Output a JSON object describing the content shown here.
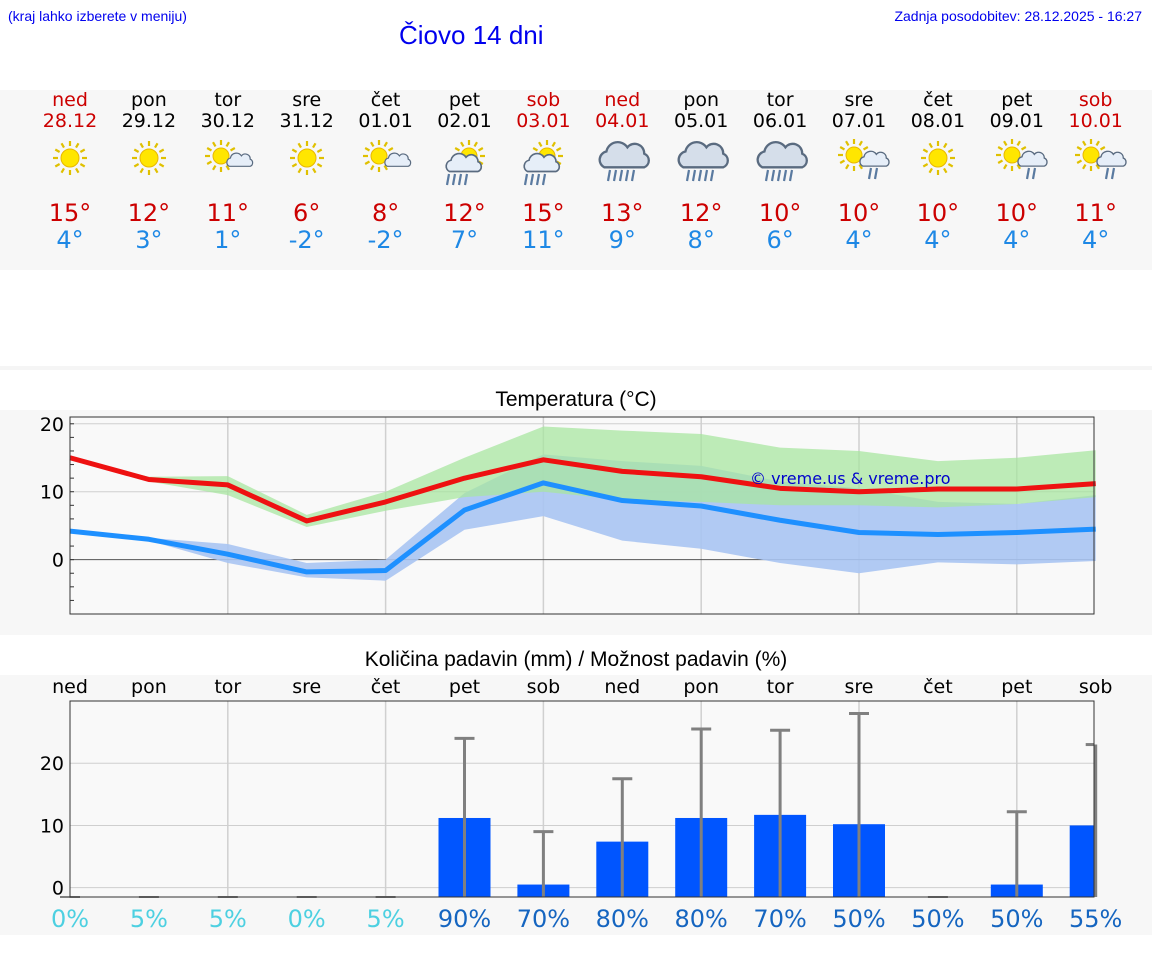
{
  "header": {
    "hint": "(kraj lahko izberete v meniju)",
    "title": "Čiovo 14 dni",
    "updated": "Zadnja posodobitev: 28.12.2025 - 16:27"
  },
  "colors": {
    "link": "#0000ee",
    "weekend": "#cc0000",
    "weekday": "#000000",
    "tmax": "#cc0000",
    "tmin": "#1e88e5",
    "max_line": "#ee1111",
    "min_line": "#1e90ff",
    "max_band": "#a8e6a0",
    "min_band": "#a9c4f2",
    "overlap_band": "#7fc4a6",
    "bar": "#0055ff",
    "whisker": "#808080",
    "pct_low": "#4dd0e1",
    "pct_high": "#1565c0"
  },
  "days": [
    {
      "name": "ned",
      "date": "28.12",
      "weekend": true,
      "icon": "sun-icon",
      "tmax": "15°",
      "tmin": "4°"
    },
    {
      "name": "pon",
      "date": "29.12",
      "weekend": false,
      "icon": "sun-icon",
      "tmax": "12°",
      "tmin": "3°"
    },
    {
      "name": "tor",
      "date": "30.12",
      "weekend": false,
      "icon": "sun-cloud-icon",
      "tmax": "11°",
      "tmin": "1°"
    },
    {
      "name": "sre",
      "date": "31.12",
      "weekend": false,
      "icon": "sun-icon",
      "tmax": "6°",
      "tmin": "-2°"
    },
    {
      "name": "čet",
      "date": "01.01",
      "weekend": false,
      "icon": "sun-cloud-icon",
      "tmax": "8°",
      "tmin": "-2°"
    },
    {
      "name": "pet",
      "date": "02.01",
      "weekend": false,
      "icon": "sun-cloud-rain-icon",
      "tmax": "12°",
      "tmin": "7°"
    },
    {
      "name": "sob",
      "date": "03.01",
      "weekend": true,
      "icon": "sun-cloud-rain-icon",
      "tmax": "15°",
      "tmin": "11°"
    },
    {
      "name": "ned",
      "date": "04.01",
      "weekend": true,
      "icon": "cloud-rain-icon",
      "tmax": "13°",
      "tmin": "9°"
    },
    {
      "name": "pon",
      "date": "05.01",
      "weekend": false,
      "icon": "cloud-rain-icon",
      "tmax": "12°",
      "tmin": "8°"
    },
    {
      "name": "tor",
      "date": "06.01",
      "weekend": false,
      "icon": "cloud-rain-icon",
      "tmax": "10°",
      "tmin": "6°"
    },
    {
      "name": "sre",
      "date": "07.01",
      "weekend": false,
      "icon": "sun-cloud-drizzle-icon",
      "tmax": "10°",
      "tmin": "4°"
    },
    {
      "name": "čet",
      "date": "08.01",
      "weekend": false,
      "icon": "sun-icon",
      "tmax": "10°",
      "tmin": "4°"
    },
    {
      "name": "pet",
      "date": "09.01",
      "weekend": false,
      "icon": "sun-cloud-drizzle-icon",
      "tmax": "10°",
      "tmin": "4°"
    },
    {
      "name": "sob",
      "date": "10.01",
      "weekend": true,
      "icon": "sun-cloud-drizzle-icon",
      "tmax": "11°",
      "tmin": "4°"
    }
  ],
  "chart_data": [
    {
      "type": "line",
      "title": "Temperatura (°C)",
      "watermark": "© vreme.us & vreme.pro",
      "ylim": [
        -8,
        21
      ],
      "yticks": [
        "20",
        "10",
        "0"
      ],
      "ytick_values": [
        20,
        10,
        0
      ],
      "grid": true,
      "series": [
        {
          "name": "max",
          "values": [
            15,
            11.8,
            11,
            5.7,
            8.5,
            12,
            14.7,
            13,
            12.2,
            10.5,
            10,
            10.4,
            10.4,
            11.2
          ]
        },
        {
          "name": "min",
          "values": [
            4.2,
            3,
            0.8,
            -1.8,
            -1.6,
            7.3,
            11.3,
            8.7,
            7.9,
            5.8,
            4,
            3.7,
            4,
            4.5
          ]
        }
      ],
      "max_band": {
        "upper": [
          15,
          12.2,
          12.3,
          6.6,
          10,
          15,
          19.6,
          19,
          18.5,
          16.5,
          16,
          14.5,
          15,
          16.1
        ],
        "lower": [
          15,
          11.5,
          9.5,
          4.8,
          7.2,
          9.2,
          10,
          8.8,
          8.5,
          8,
          8,
          7.7,
          8.2,
          9.2
        ]
      },
      "min_band": {
        "upper": [
          4.2,
          3.2,
          2.3,
          -0.5,
          0,
          9.8,
          15.5,
          14.5,
          13.8,
          11.5,
          10.5,
          8.5,
          8.2,
          9.5
        ],
        "lower": [
          4.2,
          2.8,
          -0.5,
          -2.6,
          -3.1,
          4.4,
          6.4,
          2.8,
          1.6,
          -0.5,
          -2,
          -0.4,
          -0.7,
          -0.2
        ]
      }
    },
    {
      "type": "bar",
      "title": "Količina padavin (mm) / Možnost padavin (%)",
      "categories": [
        "ned",
        "pon",
        "tor",
        "sre",
        "čet",
        "pet",
        "sob",
        "ned",
        "pon",
        "tor",
        "sre",
        "čet",
        "pet",
        "sob"
      ],
      "ylim": [
        -1.5,
        30
      ],
      "yticks": [
        "20",
        "10",
        "0"
      ],
      "ytick_values": [
        20,
        10,
        0
      ],
      "values": [
        0,
        0,
        0,
        0,
        0,
        11.2,
        0.5,
        7.4,
        11.2,
        11.7,
        10.2,
        0,
        0.5,
        10
      ],
      "error_high": [
        0,
        0,
        0,
        0,
        0,
        24,
        9,
        17.5,
        25.5,
        25.3,
        28,
        0,
        12.2,
        23
      ],
      "chance": [
        "0%",
        "5%",
        "5%",
        "0%",
        "5%",
        "90%",
        "70%",
        "80%",
        "80%",
        "70%",
        "50%",
        "50%",
        "50%",
        "55%"
      ],
      "chance_values": [
        0,
        5,
        5,
        0,
        5,
        90,
        70,
        80,
        80,
        70,
        50,
        50,
        50,
        55
      ]
    }
  ]
}
